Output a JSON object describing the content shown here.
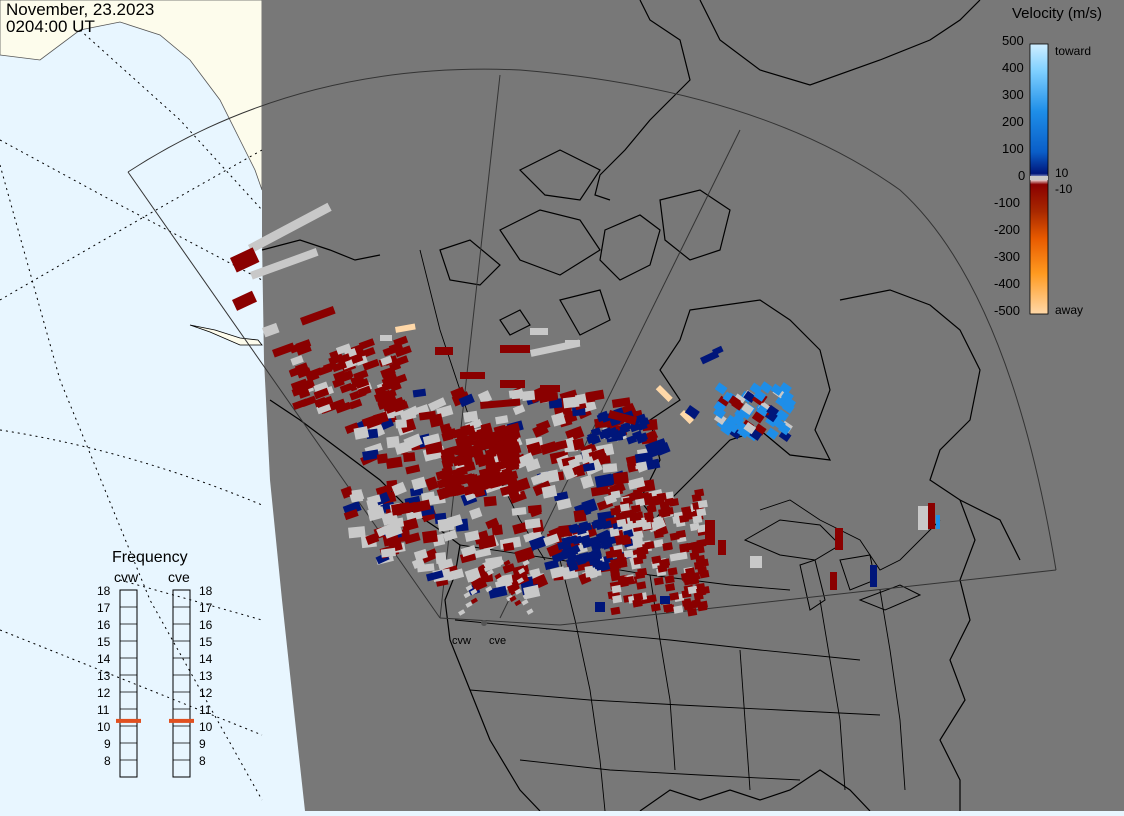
{
  "header": {
    "date": "November, 23.2023",
    "time": "0204:00 UT"
  },
  "velocity_scale": {
    "title": "Velocity (m/s)",
    "ticks": [
      "500",
      "400",
      "300",
      "200",
      "100",
      "0",
      "-100",
      "-200",
      "-300",
      "-400",
      "-500"
    ],
    "near_zero_labels": [
      "10",
      "-10"
    ],
    "end_labels": {
      "top": "toward",
      "bottom": "away"
    },
    "colors": {
      "toward_light": "#cfeeff",
      "toward_mid": "#1e8ee8",
      "toward_dark": "#00167a",
      "away_dark": "#8a0000",
      "away_mid": "#e85a00",
      "away_light": "#ffd8a8",
      "ground_scatter": "#c8c8c8"
    }
  },
  "frequency_panel": {
    "title": "Frequency",
    "radars": [
      "cvw",
      "cve"
    ],
    "scale_labels": [
      "18",
      "17",
      "16",
      "15",
      "14",
      "13",
      "12",
      "11",
      "10",
      "9",
      "8"
    ],
    "cvw_mhz": 10.8,
    "cve_mhz": 10.8
  },
  "radar_sites": [
    "cvw",
    "cve"
  ],
  "colors": {
    "background_grey": "#787878",
    "ocean": "#e8f6ff",
    "land_light": "#fdfcec",
    "indicator": "#e05020"
  }
}
